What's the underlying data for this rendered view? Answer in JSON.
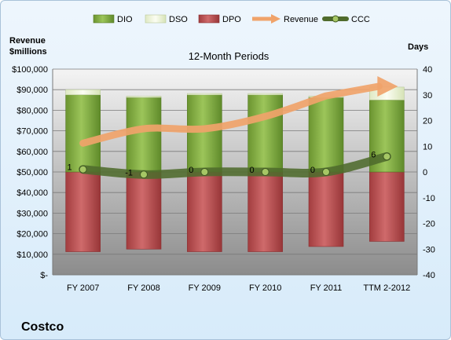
{
  "chart_data": {
    "type": "bar",
    "subtitle": "12-Month Periods",
    "company": "Costco",
    "categories": [
      "FY 2007",
      "FY 2008",
      "FY 2009",
      "FY 2010",
      "FY 2011",
      "TTM 2-2012"
    ],
    "y_left": {
      "label": "Revenue $millions",
      "label_lines": [
        "Revenue",
        "$millions"
      ],
      "ylim": [
        0,
        100000
      ],
      "ticks": [
        "$-",
        "$10,000",
        "$20,000",
        "$30,000",
        "$40,000",
        "$50,000",
        "$60,000",
        "$70,000",
        "$80,000",
        "$90,000",
        "$100,000"
      ]
    },
    "y_right": {
      "label": "Days",
      "ylim": [
        -40,
        40
      ],
      "ticks": [
        "-40",
        "-30",
        "-20",
        "-10",
        "0",
        "10",
        "20",
        "30",
        "40"
      ]
    },
    "series": [
      {
        "name": "DIO",
        "axis": "right",
        "values": [
          30,
          29,
          30,
          30,
          29,
          28
        ],
        "color": "#77a038"
      },
      {
        "name": "DSO",
        "axis": "right",
        "values": [
          2,
          0.5,
          0.5,
          0.5,
          0.5,
          5
        ],
        "color": "#eef5d6"
      },
      {
        "name": "DPO",
        "axis": "right",
        "values": [
          -31,
          -30,
          -31,
          -31,
          -29,
          -27
        ],
        "color": "#b8484a"
      },
      {
        "name": "Revenue",
        "axis": "left",
        "type": "line",
        "values": [
          64000,
          71000,
          71000,
          77000,
          87000,
          92000
        ],
        "color": "#f0a36a"
      },
      {
        "name": "CCC",
        "axis": "right",
        "type": "line",
        "values": [
          1,
          -1,
          0,
          0,
          0,
          6
        ],
        "labels": [
          "1",
          "-1",
          "0",
          "0",
          "0",
          "6"
        ],
        "color": "#4f6b2c"
      }
    ],
    "legend": {
      "position": "top",
      "entries": [
        "DIO",
        "DSO",
        "DPO",
        "Revenue",
        "CCC"
      ]
    },
    "grid": true
  }
}
